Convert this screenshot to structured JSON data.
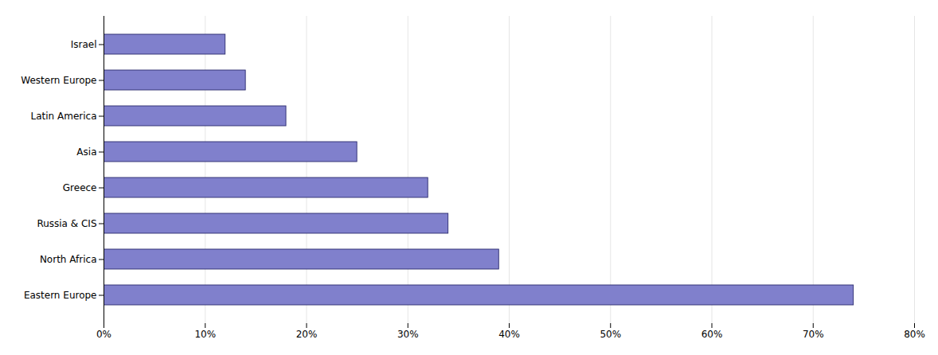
{
  "chart_data": {
    "type": "bar",
    "orientation": "horizontal",
    "categories": [
      "Israel",
      "Western Europe",
      "Latin America",
      "Asia",
      "Greece",
      "Russia & CIS",
      "North Africa",
      "Eastern Europe"
    ],
    "values": [
      12,
      14,
      18,
      25,
      32,
      34,
      39,
      74
    ],
    "color": "#8080cc",
    "xlim": [
      0,
      80
    ],
    "xticks": [
      {
        "value": 0,
        "label": "0%"
      },
      {
        "value": 10,
        "label": "10%"
      },
      {
        "value": 20,
        "label": "20%"
      },
      {
        "value": 30,
        "label": "30%"
      },
      {
        "value": 40,
        "label": "40%"
      },
      {
        "value": 50,
        "label": "50%"
      },
      {
        "value": 60,
        "label": "60%"
      },
      {
        "value": 70,
        "label": "70%"
      },
      {
        "value": 80,
        "label": "80%"
      }
    ],
    "grid": true
  }
}
